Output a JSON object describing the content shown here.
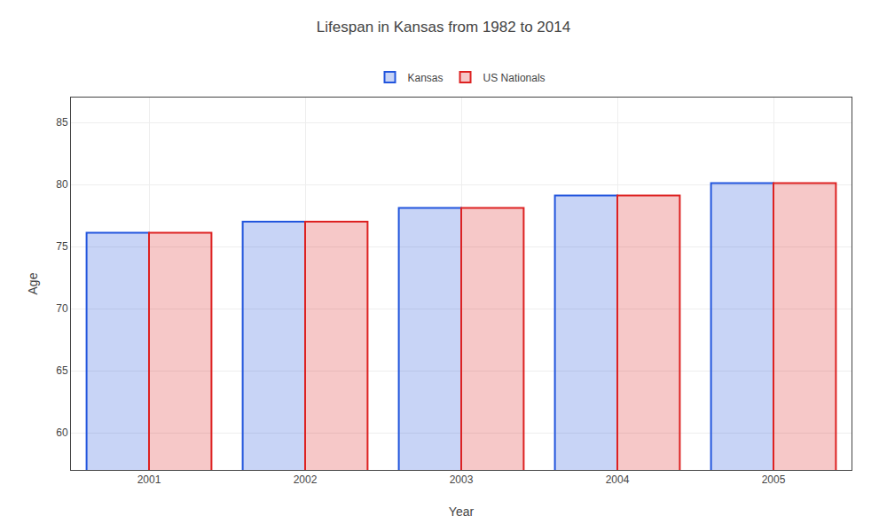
{
  "chart_data": {
    "type": "bar",
    "title": "Lifespan in Kansas from 1982 to 2014",
    "xlabel": "Year",
    "ylabel": "Age",
    "categories": [
      "2001",
      "2002",
      "2003",
      "2004",
      "2005"
    ],
    "series": [
      {
        "name": "Kansas",
        "color": "#2255dd",
        "values": [
          76.1,
          77.0,
          78.1,
          79.1,
          80.1
        ]
      },
      {
        "name": "US Nationals",
        "color": "#dd2222",
        "values": [
          76.1,
          77.0,
          78.1,
          79.1,
          80.1
        ]
      }
    ],
    "ylim": [
      57,
      87
    ],
    "yticks": [
      60,
      65,
      70,
      75,
      80,
      85
    ],
    "grid": true,
    "legend": "top"
  }
}
